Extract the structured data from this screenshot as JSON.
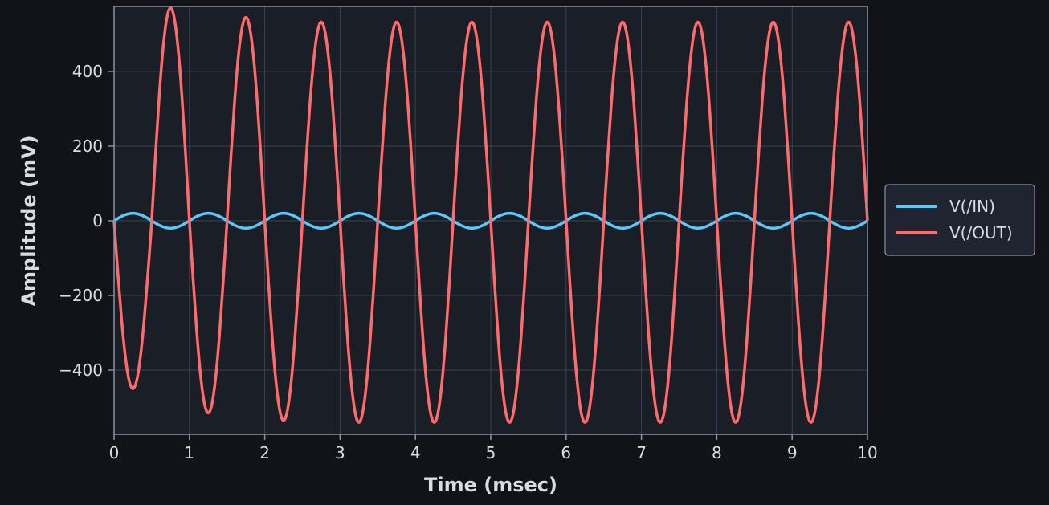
{
  "chart_data": {
    "type": "line",
    "xlabel": "Time (msec)",
    "ylabel": "Amplitude (mV)",
    "xlim": [
      0,
      10
    ],
    "xticks": [
      0,
      1,
      2,
      3,
      4,
      5,
      6,
      7,
      8,
      9,
      10
    ],
    "ylim": [
      -572,
      574
    ],
    "yticks": [
      {
        "value": -400,
        "label": "−400"
      },
      {
        "value": -200,
        "label": "−200"
      },
      0,
      200,
      400
    ],
    "grid": true,
    "legend": "outside right",
    "x": [
      0,
      0.05,
      0.1,
      0.15,
      0.2,
      0.25,
      0.3,
      0.35,
      0.4,
      0.45,
      0.5,
      0.55,
      0.6,
      0.65,
      0.7,
      0.75,
      0.8,
      0.85,
      0.9,
      0.95,
      1,
      1.05,
      1.1,
      1.15,
      1.2,
      1.25,
      1.3,
      1.35,
      1.4,
      1.45,
      1.5,
      1.55,
      1.6,
      1.65,
      1.7,
      1.75,
      1.8,
      1.85,
      1.9,
      1.95,
      2,
      2.05,
      2.1,
      2.15,
      2.2,
      2.25,
      2.3,
      2.35,
      2.4,
      2.45,
      2.5,
      2.55,
      2.6,
      2.65,
      2.7,
      2.75,
      2.8,
      2.85,
      2.9,
      2.95,
      3,
      3.05,
      3.1,
      3.15,
      3.2,
      3.25,
      3.3,
      3.35,
      3.4,
      3.45,
      3.5,
      3.55,
      3.6,
      3.65,
      3.7,
      3.75,
      3.8,
      3.85,
      3.9,
      3.95,
      4,
      4.05,
      4.1,
      4.15,
      4.2,
      4.25,
      4.3,
      4.35,
      4.4,
      4.45,
      4.5,
      4.55,
      4.6,
      4.65,
      4.7,
      4.75,
      4.8,
      4.85,
      4.9,
      4.95,
      5,
      5.05,
      5.1,
      5.15,
      5.2,
      5.25,
      5.3,
      5.35,
      5.4,
      5.45,
      5.5,
      5.55,
      5.6,
      5.65,
      5.7,
      5.75,
      5.8,
      5.85,
      5.9,
      5.95,
      6,
      6.05,
      6.1,
      6.15,
      6.2,
      6.25,
      6.3,
      6.35,
      6.4,
      6.45,
      6.5,
      6.55,
      6.6,
      6.65,
      6.7,
      6.75,
      6.8,
      6.85,
      6.9,
      6.95,
      7,
      7.05,
      7.1,
      7.15,
      7.2,
      7.25,
      7.3,
      7.35,
      7.4,
      7.45,
      7.5,
      7.55,
      7.6,
      7.65,
      7.7,
      7.75,
      7.8,
      7.85,
      7.9,
      7.95,
      8,
      8.05,
      8.1,
      8.15,
      8.2,
      8.25,
      8.3,
      8.35,
      8.4,
      8.45,
      8.5,
      8.55,
      8.6,
      8.65,
      8.7,
      8.75,
      8.8,
      8.85,
      8.9,
      8.95,
      9,
      9.05,
      9.1,
      9.15,
      9.2,
      9.25,
      9.3,
      9.35,
      9.4,
      9.45,
      9.5,
      9.55,
      9.6,
      9.65,
      9.7,
      9.75,
      9.8,
      9.85,
      9.9,
      9.95,
      10
    ],
    "series": [
      {
        "name": "V(/IN)",
        "color": "#5ac8fa",
        "values": [
          0,
          6.2,
          11.8,
          16.2,
          19,
          20,
          19,
          16.2,
          11.8,
          6.2,
          0,
          -6.2,
          -11.8,
          -16.2,
          -19,
          -20,
          -19,
          -16.2,
          -11.8,
          -6.2,
          0,
          6.2,
          11.8,
          16.2,
          19,
          20,
          19,
          16.2,
          11.8,
          6.2,
          0,
          -6.2,
          -11.8,
          -16.2,
          -19,
          -20,
          -19,
          -16.2,
          -11.8,
          -6.2,
          0,
          6.2,
          11.8,
          16.2,
          19,
          20,
          19,
          16.2,
          11.8,
          6.2,
          0,
          -6.2,
          -11.8,
          -16.2,
          -19,
          -20,
          -19,
          -16.2,
          -11.8,
          -6.2,
          0,
          6.2,
          11.8,
          16.2,
          19,
          20,
          19,
          16.2,
          11.8,
          6.2,
          0,
          -6.2,
          -11.8,
          -16.2,
          -19,
          -20,
          -19,
          -16.2,
          -11.8,
          -6.2,
          0,
          6.2,
          11.8,
          16.2,
          19,
          20,
          19,
          16.2,
          11.8,
          6.2,
          0,
          -6.2,
          -11.8,
          -16.2,
          -19,
          -20,
          -19,
          -16.2,
          -11.8,
          -6.2,
          0,
          6.2,
          11.8,
          16.2,
          19,
          20,
          19,
          16.2,
          11.8,
          6.2,
          0,
          -6.2,
          -11.8,
          -16.2,
          -19,
          -20,
          -19,
          -16.2,
          -11.8,
          -6.2,
          0,
          6.2,
          11.8,
          16.2,
          19,
          20,
          19,
          16.2,
          11.8,
          6.2,
          0,
          -6.2,
          -11.8,
          -16.2,
          -19,
          -20,
          -19,
          -16.2,
          -11.8,
          -6.2,
          0,
          6.2,
          11.8,
          16.2,
          19,
          20,
          19,
          16.2,
          11.8,
          6.2,
          0,
          -6.2,
          -11.8,
          -16.2,
          -19,
          -20,
          -19,
          -16.2,
          -11.8,
          -6.2,
          0,
          6.2,
          11.8,
          16.2,
          19,
          20,
          19,
          16.2,
          11.8,
          6.2,
          0,
          -6.2,
          -11.8,
          -16.2,
          -19,
          -20,
          -19,
          -16.2,
          -11.8,
          -6.2,
          0,
          6.2,
          11.8,
          16.2,
          19,
          20,
          19,
          16.2,
          11.8,
          6.2,
          0,
          -6.2,
          -11.8,
          -16.2,
          -19,
          -20,
          -19,
          -16.2,
          -11.8,
          -6.2,
          0
        ]
      },
      {
        "name": "V(/OUT)",
        "color": "#ff6b6b",
        "values": [
          0,
          -139,
          -265,
          -364,
          -428,
          -450,
          -428,
          -364,
          -265,
          -139,
          0,
          176,
          335,
          461,
          542,
          570,
          542,
          461,
          335,
          176,
          0,
          -159,
          -303,
          -417,
          -490,
          -515,
          -490,
          -417,
          -303,
          -159,
          0,
          168,
          320,
          441,
          518,
          545,
          518,
          441,
          320,
          168,
          0,
          -165,
          -315,
          -433,
          -509,
          -535,
          -509,
          -433,
          -315,
          -165,
          0,
          164,
          313,
          430,
          506,
          532,
          506,
          430,
          313,
          164,
          0,
          -167,
          -318,
          -437,
          -514,
          -540,
          -514,
          -437,
          -318,
          -167,
          0,
          164,
          313,
          430,
          506,
          532,
          506,
          430,
          313,
          164,
          0,
          -167,
          -318,
          -437,
          -514,
          -540,
          -514,
          -437,
          -318,
          -167,
          0,
          164,
          313,
          430,
          506,
          532,
          506,
          430,
          313,
          164,
          0,
          -167,
          -318,
          -437,
          -514,
          -540,
          -514,
          -437,
          -318,
          -167,
          0,
          164,
          313,
          430,
          506,
          532,
          506,
          430,
          313,
          164,
          0,
          -167,
          -318,
          -437,
          -514,
          -540,
          -514,
          -437,
          -318,
          -167,
          0,
          164,
          313,
          430,
          506,
          532,
          506,
          430,
          313,
          164,
          0,
          -167,
          -318,
          -437,
          -514,
          -540,
          -514,
          -437,
          -318,
          -167,
          0,
          164,
          313,
          430,
          506,
          532,
          506,
          430,
          313,
          164,
          0,
          -167,
          -318,
          -437,
          -514,
          -540,
          -514,
          -437,
          -318,
          -167,
          0,
          164,
          313,
          430,
          506,
          532,
          506,
          430,
          313,
          164,
          0,
          -167,
          -318,
          -437,
          -514,
          -540,
          -514,
          -437,
          -318,
          -167,
          0,
          164,
          313,
          430,
          506,
          532,
          506,
          430,
          313,
          164,
          0
        ]
      }
    ]
  }
}
